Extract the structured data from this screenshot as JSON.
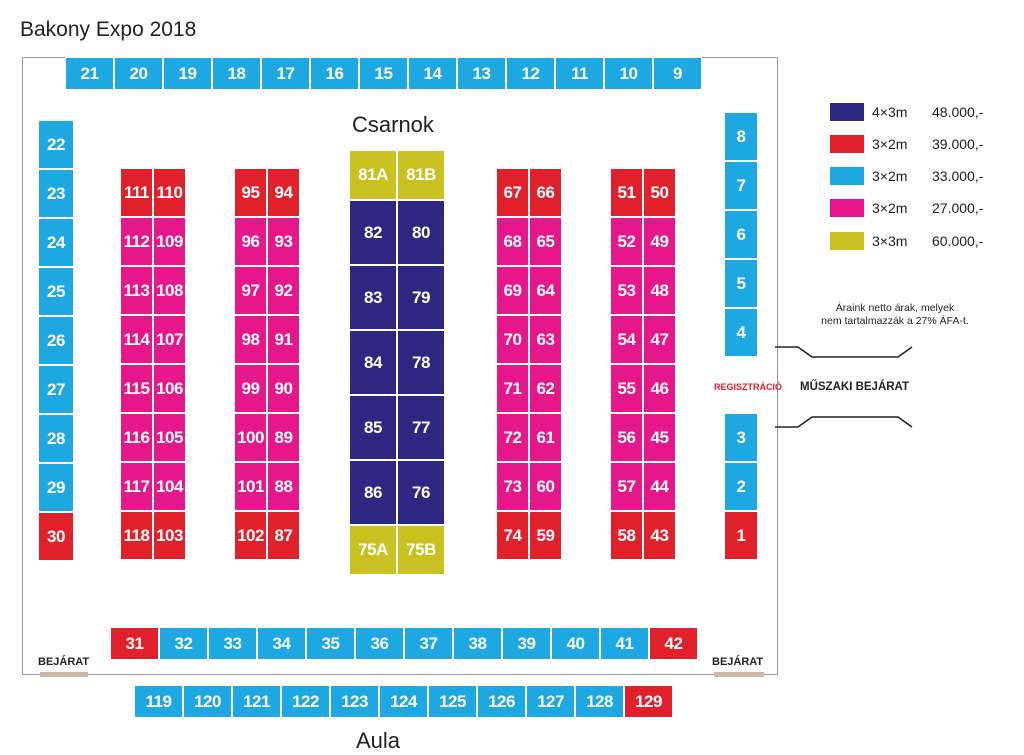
{
  "title": "Bakony Expo 2018",
  "hall_label": "Csarnok",
  "aula_label": "Aula",
  "entrances": {
    "left": "BEJÁRAT",
    "right": "BEJÁRAT"
  },
  "registration_label": "REGISZTRÁCIÓ",
  "technical_entrance_label": "MŰSZAKI BEJÁRAT",
  "price_note": [
    "Áraink netto árak, melyek",
    "nem tartalmazzák a 27% ÁFA-t."
  ],
  "colors": {
    "blue": "#1da8e2",
    "red": "#e0212b",
    "magenta": "#e5178a",
    "navy": "#2e2782",
    "yellow": "#c8c120"
  },
  "legend": [
    {
      "color": "navy",
      "size": "4×3m",
      "price": "48.000,-"
    },
    {
      "color": "red",
      "size": "3×2m",
      "price": "39.000,-"
    },
    {
      "color": "blue",
      "size": "3×2m",
      "price": "33.000,-"
    },
    {
      "color": "magenta",
      "size": "3×2m",
      "price": "27.000,-"
    },
    {
      "color": "yellow",
      "size": "3×3m",
      "price": "60.000,-"
    }
  ],
  "booths": {
    "top_row": [
      {
        "id": "21",
        "c": "blue"
      },
      {
        "id": "20",
        "c": "blue"
      },
      {
        "id": "19",
        "c": "blue"
      },
      {
        "id": "18",
        "c": "blue"
      },
      {
        "id": "17",
        "c": "blue"
      },
      {
        "id": "16",
        "c": "blue"
      },
      {
        "id": "15",
        "c": "blue"
      },
      {
        "id": "14",
        "c": "blue"
      },
      {
        "id": "13",
        "c": "blue"
      },
      {
        "id": "12",
        "c": "blue"
      },
      {
        "id": "11",
        "c": "blue"
      },
      {
        "id": "10",
        "c": "blue"
      },
      {
        "id": "9",
        "c": "blue"
      }
    ],
    "left_wall": [
      {
        "id": "22",
        "c": "blue"
      },
      {
        "id": "23",
        "c": "blue"
      },
      {
        "id": "24",
        "c": "blue"
      },
      {
        "id": "25",
        "c": "blue"
      },
      {
        "id": "26",
        "c": "blue"
      },
      {
        "id": "27",
        "c": "blue"
      },
      {
        "id": "28",
        "c": "blue"
      },
      {
        "id": "29",
        "c": "blue"
      },
      {
        "id": "30",
        "c": "red"
      }
    ],
    "right_wall_upper": [
      {
        "id": "8",
        "c": "blue"
      },
      {
        "id": "7",
        "c": "blue"
      },
      {
        "id": "6",
        "c": "blue"
      },
      {
        "id": "5",
        "c": "blue"
      },
      {
        "id": "4",
        "c": "blue"
      }
    ],
    "right_wall_lower": [
      {
        "id": "3",
        "c": "blue"
      },
      {
        "id": "2",
        "c": "blue"
      },
      {
        "id": "1",
        "c": "red"
      }
    ],
    "block_1": [
      [
        {
          "id": "111",
          "c": "red"
        },
        {
          "id": "110",
          "c": "red"
        }
      ],
      [
        {
          "id": "112",
          "c": "magenta"
        },
        {
          "id": "109",
          "c": "magenta"
        }
      ],
      [
        {
          "id": "113",
          "c": "magenta"
        },
        {
          "id": "108",
          "c": "magenta"
        }
      ],
      [
        {
          "id": "114",
          "c": "magenta"
        },
        {
          "id": "107",
          "c": "magenta"
        }
      ],
      [
        {
          "id": "115",
          "c": "magenta"
        },
        {
          "id": "106",
          "c": "magenta"
        }
      ],
      [
        {
          "id": "116",
          "c": "magenta"
        },
        {
          "id": "105",
          "c": "magenta"
        }
      ],
      [
        {
          "id": "117",
          "c": "magenta"
        },
        {
          "id": "104",
          "c": "magenta"
        }
      ],
      [
        {
          "id": "118",
          "c": "red"
        },
        {
          "id": "103",
          "c": "red"
        }
      ]
    ],
    "block_2": [
      [
        {
          "id": "95",
          "c": "red"
        },
        {
          "id": "94",
          "c": "red"
        }
      ],
      [
        {
          "id": "96",
          "c": "magenta"
        },
        {
          "id": "93",
          "c": "magenta"
        }
      ],
      [
        {
          "id": "97",
          "c": "magenta"
        },
        {
          "id": "92",
          "c": "magenta"
        }
      ],
      [
        {
          "id": "98",
          "c": "magenta"
        },
        {
          "id": "91",
          "c": "magenta"
        }
      ],
      [
        {
          "id": "99",
          "c": "magenta"
        },
        {
          "id": "90",
          "c": "magenta"
        }
      ],
      [
        {
          "id": "100",
          "c": "magenta"
        },
        {
          "id": "89",
          "c": "magenta"
        }
      ],
      [
        {
          "id": "101",
          "c": "magenta"
        },
        {
          "id": "88",
          "c": "magenta"
        }
      ],
      [
        {
          "id": "102",
          "c": "red"
        },
        {
          "id": "87",
          "c": "red"
        }
      ]
    ],
    "center_top": [
      {
        "id": "81A",
        "c": "yellow"
      },
      {
        "id": "81B",
        "c": "yellow"
      }
    ],
    "center": [
      [
        {
          "id": "82",
          "c": "navy"
        },
        {
          "id": "80",
          "c": "navy"
        }
      ],
      [
        {
          "id": "83",
          "c": "navy"
        },
        {
          "id": "79",
          "c": "navy"
        }
      ],
      [
        {
          "id": "84",
          "c": "navy"
        },
        {
          "id": "78",
          "c": "navy"
        }
      ],
      [
        {
          "id": "85",
          "c": "navy"
        },
        {
          "id": "77",
          "c": "navy"
        }
      ],
      [
        {
          "id": "86",
          "c": "navy"
        },
        {
          "id": "76",
          "c": "navy"
        }
      ]
    ],
    "center_bottom": [
      {
        "id": "75A",
        "c": "yellow"
      },
      {
        "id": "75B",
        "c": "yellow"
      }
    ],
    "block_3": [
      [
        {
          "id": "67",
          "c": "red"
        },
        {
          "id": "66",
          "c": "red"
        }
      ],
      [
        {
          "id": "68",
          "c": "magenta"
        },
        {
          "id": "65",
          "c": "magenta"
        }
      ],
      [
        {
          "id": "69",
          "c": "magenta"
        },
        {
          "id": "64",
          "c": "magenta"
        }
      ],
      [
        {
          "id": "70",
          "c": "magenta"
        },
        {
          "id": "63",
          "c": "magenta"
        }
      ],
      [
        {
          "id": "71",
          "c": "magenta"
        },
        {
          "id": "62",
          "c": "magenta"
        }
      ],
      [
        {
          "id": "72",
          "c": "magenta"
        },
        {
          "id": "61",
          "c": "magenta"
        }
      ],
      [
        {
          "id": "73",
          "c": "magenta"
        },
        {
          "id": "60",
          "c": "magenta"
        }
      ],
      [
        {
          "id": "74",
          "c": "red"
        },
        {
          "id": "59",
          "c": "red"
        }
      ]
    ],
    "block_4": [
      [
        {
          "id": "51",
          "c": "red"
        },
        {
          "id": "50",
          "c": "red"
        }
      ],
      [
        {
          "id": "52",
          "c": "magenta"
        },
        {
          "id": "49",
          "c": "magenta"
        }
      ],
      [
        {
          "id": "53",
          "c": "magenta"
        },
        {
          "id": "48",
          "c": "magenta"
        }
      ],
      [
        {
          "id": "54",
          "c": "magenta"
        },
        {
          "id": "47",
          "c": "magenta"
        }
      ],
      [
        {
          "id": "55",
          "c": "magenta"
        },
        {
          "id": "46",
          "c": "magenta"
        }
      ],
      [
        {
          "id": "56",
          "c": "magenta"
        },
        {
          "id": "45",
          "c": "magenta"
        }
      ],
      [
        {
          "id": "57",
          "c": "magenta"
        },
        {
          "id": "44",
          "c": "magenta"
        }
      ],
      [
        {
          "id": "58",
          "c": "red"
        },
        {
          "id": "43",
          "c": "red"
        }
      ]
    ],
    "bottom_row": [
      {
        "id": "31",
        "c": "red"
      },
      {
        "id": "32",
        "c": "blue"
      },
      {
        "id": "33",
        "c": "blue"
      },
      {
        "id": "34",
        "c": "blue"
      },
      {
        "id": "35",
        "c": "blue"
      },
      {
        "id": "36",
        "c": "blue"
      },
      {
        "id": "37",
        "c": "blue"
      },
      {
        "id": "38",
        "c": "blue"
      },
      {
        "id": "39",
        "c": "blue"
      },
      {
        "id": "40",
        "c": "blue"
      },
      {
        "id": "41",
        "c": "blue"
      },
      {
        "id": "42",
        "c": "red"
      }
    ],
    "aula_row": [
      {
        "id": "119",
        "c": "blue"
      },
      {
        "id": "120",
        "c": "blue"
      },
      {
        "id": "121",
        "c": "blue"
      },
      {
        "id": "122",
        "c": "blue"
      },
      {
        "id": "123",
        "c": "blue"
      },
      {
        "id": "124",
        "c": "blue"
      },
      {
        "id": "125",
        "c": "blue"
      },
      {
        "id": "126",
        "c": "blue"
      },
      {
        "id": "127",
        "c": "blue"
      },
      {
        "id": "128",
        "c": "blue"
      },
      {
        "id": "129",
        "c": "red"
      }
    ]
  }
}
